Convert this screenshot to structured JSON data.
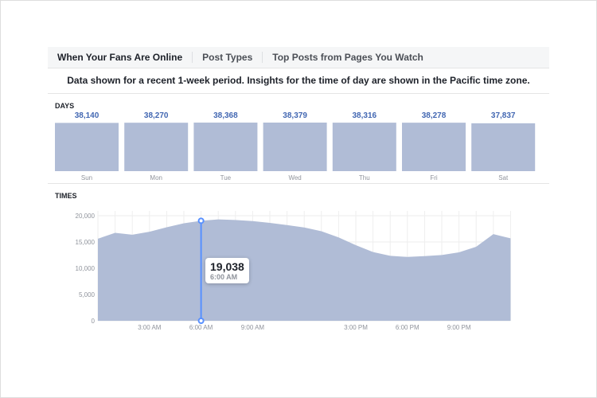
{
  "tabs": [
    {
      "label": "When Your Fans Are Online",
      "active": true
    },
    {
      "label": "Post Types"
    },
    {
      "label": "Top Posts from Pages You Watch"
    }
  ],
  "note": "Data shown for a recent 1-week period. Insights for the time of day are shown in the Pacific time zone.",
  "chart_data": [
    {
      "type": "bar",
      "title": "DAYS",
      "categories": [
        "Sun",
        "Mon",
        "Tue",
        "Wed",
        "Thu",
        "Fri",
        "Sat"
      ],
      "values": [
        38140,
        38270,
        38368,
        38379,
        38316,
        38278,
        37837
      ],
      "labels": [
        "38,140",
        "38,270",
        "38,368",
        "38,379",
        "38,316",
        "38,278",
        "37,837"
      ],
      "color": "#b0bcd6",
      "label_color": "#4267b2"
    },
    {
      "type": "area",
      "title": "TIMES",
      "x_hours": [
        0,
        1,
        2,
        3,
        4,
        5,
        6,
        7,
        8,
        9,
        10,
        11,
        12,
        13,
        14,
        15,
        16,
        17,
        18,
        19,
        20,
        21,
        22,
        23,
        24
      ],
      "values": [
        15620,
        16740,
        16390,
        16950,
        17810,
        18570,
        19038,
        19290,
        19190,
        18980,
        18630,
        18220,
        17760,
        17050,
        15880,
        14400,
        13080,
        12370,
        12160,
        12310,
        12520,
        13030,
        14100,
        16490,
        15700
      ],
      "ylim": [
        0,
        20000
      ],
      "yticks": [
        "0",
        "5,000",
        "10,000",
        "15,000",
        "20,000"
      ],
      "xticks": [
        {
          "h": 3,
          "label": "3:00 AM"
        },
        {
          "h": 6,
          "label": "6:00 AM"
        },
        {
          "h": 9,
          "label": "9:00 AM"
        },
        {
          "h": 15,
          "label": "3:00 PM"
        },
        {
          "h": 18,
          "label": "6:00 PM"
        },
        {
          "h": 21,
          "label": "9:00 PM"
        }
      ],
      "grid": true,
      "color": "#b0bcd6",
      "cursor_color": "#5890ff",
      "tooltip": {
        "hour": 6,
        "value": "19,038",
        "time": "6:00 AM"
      }
    }
  ]
}
